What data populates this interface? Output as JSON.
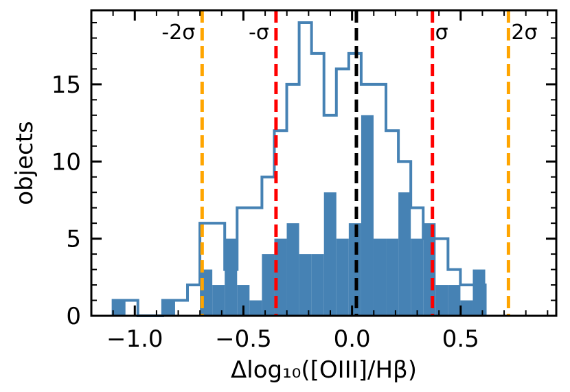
{
  "chart_data": {
    "type": "histogram",
    "title": "",
    "xlabel": "Δlog₁₀([OIII]/Hβ)",
    "ylabel": "objects",
    "xlim": [
      -1.2,
      0.94
    ],
    "ylim": [
      0,
      19.8
    ],
    "bin_width": 0.0571,
    "bin_start": -1.1,
    "x_ticks": [
      -1.0,
      -0.5,
      0.0,
      0.5
    ],
    "x_tick_labels": [
      "−1.0",
      "−0.5",
      "0.0",
      "0.5"
    ],
    "y_ticks": [
      0,
      5,
      10,
      15
    ],
    "y_tick_labels": [
      "0",
      "5",
      "10",
      "15"
    ],
    "series": [
      {
        "style": "step",
        "color": "#4682b4",
        "values": [
          1,
          1,
          0,
          0,
          1,
          1,
          2,
          6,
          6,
          3,
          7,
          7,
          9,
          12,
          15,
          19,
          17,
          13,
          16,
          17,
          15,
          15,
          12,
          10,
          7,
          5,
          5,
          3,
          2,
          2
        ]
      },
      {
        "style": "filled",
        "color": "#4682b4",
        "values": [
          1,
          0,
          0,
          0,
          1,
          0,
          0,
          3,
          2,
          5,
          2,
          1,
          4,
          5,
          6,
          4,
          4,
          8,
          5,
          6,
          13,
          5,
          5,
          8,
          5,
          6,
          2,
          2,
          1,
          3
        ]
      }
    ],
    "vlines": [
      {
        "x": 0.02,
        "color": "#000000",
        "label": ""
      },
      {
        "x": -0.35,
        "color": "#ff0000",
        "label": "-σ"
      },
      {
        "x": 0.37,
        "color": "#ff0000",
        "label": "σ"
      },
      {
        "x": -0.69,
        "color": "#ffa500",
        "label": "-2σ"
      },
      {
        "x": 0.72,
        "color": "#ffa500",
        "label": "2σ"
      }
    ]
  }
}
